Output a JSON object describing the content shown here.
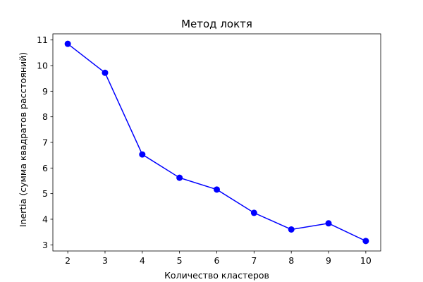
{
  "chart_data": {
    "type": "line",
    "title": "Метод локтя",
    "xlabel": "Количество кластеров",
    "ylabel": "Inertia (сумма квадратов расстояний)",
    "x": [
      2,
      3,
      4,
      5,
      6,
      7,
      8,
      9,
      10
    ],
    "series": [
      {
        "values": [
          10.85,
          9.72,
          6.53,
          5.62,
          5.16,
          4.25,
          3.6,
          3.84,
          3.15
        ]
      }
    ],
    "xticks": [
      2,
      3,
      4,
      5,
      6,
      7,
      8,
      9,
      10
    ],
    "yticks": [
      3,
      4,
      5,
      6,
      7,
      8,
      9,
      10,
      11
    ],
    "xlim": [
      1.6,
      10.4
    ],
    "ylim": [
      2.76,
      11.24
    ],
    "marker": "circle",
    "line_color": "#0000ff",
    "grid": false,
    "legend": "none"
  }
}
